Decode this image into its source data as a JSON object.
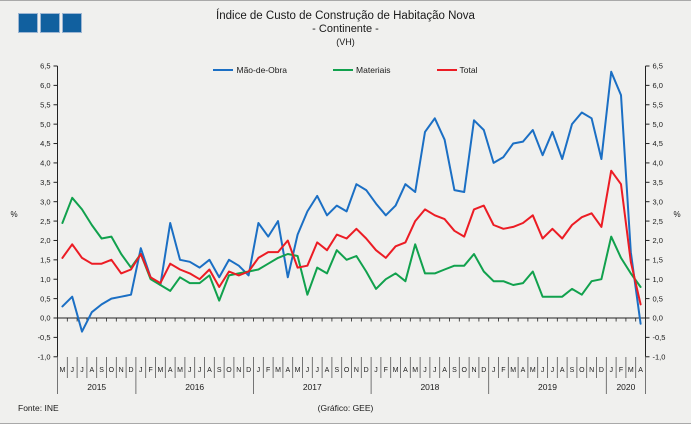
{
  "header": {
    "title_line1": "Índice de Custo de Construção de Habitação Nova",
    "title_line2": "- Continente -",
    "title_line3": "(VH)"
  },
  "legend": [
    {
      "label": "Mão-de-Obra",
      "color": "#1B6FC4"
    },
    {
      "label": "Materiais",
      "color": "#11A14D"
    },
    {
      "label": "Total",
      "color": "#EC1C24"
    }
  ],
  "footer": {
    "source": "Fonte: INE",
    "credit": "(Gráfico: GEE)"
  },
  "decoration": {
    "squares_color": "#11609F",
    "squares_count": 3
  },
  "chart_data": {
    "type": "line",
    "title": "Índice de Custo de Construção de Habitação Nova - Continente - (VH)",
    "ylabel_left": "%",
    "ylabel_right": "%",
    "ylim": [
      -1.0,
      6.5
    ],
    "ytick_step": 0.5,
    "grid": false,
    "legend_position": "top",
    "months": [
      "M",
      "J",
      "J",
      "A",
      "S",
      "O",
      "N",
      "D",
      "J",
      "F",
      "M",
      "A",
      "M",
      "J",
      "J",
      "A",
      "S",
      "O",
      "N",
      "D",
      "J",
      "F",
      "M",
      "A",
      "M",
      "J",
      "J",
      "A",
      "S",
      "O",
      "N",
      "D",
      "J",
      "F",
      "M",
      "A",
      "M",
      "J",
      "J",
      "A",
      "S",
      "O",
      "N",
      "D",
      "J",
      "F",
      "M",
      "A",
      "M",
      "J",
      "J",
      "A",
      "S",
      "O",
      "N",
      "D",
      "J",
      "F",
      "M",
      "A"
    ],
    "years": [
      {
        "label": "2015",
        "span": 8
      },
      {
        "label": "2016",
        "span": 12
      },
      {
        "label": "2017",
        "span": 12
      },
      {
        "label": "2018",
        "span": 12
      },
      {
        "label": "2019",
        "span": 12
      },
      {
        "label": "2020",
        "span": 4
      }
    ],
    "series": [
      {
        "name": "Mão-de-Obra",
        "color": "#1B6FC4",
        "values": [
          0.3,
          0.55,
          -0.35,
          0.15,
          0.35,
          0.5,
          0.55,
          0.6,
          1.8,
          1.05,
          0.85,
          2.45,
          1.5,
          1.45,
          1.3,
          1.5,
          1.05,
          1.5,
          1.35,
          1.1,
          2.45,
          2.1,
          2.5,
          1.05,
          2.15,
          2.75,
          3.15,
          2.65,
          2.9,
          2.75,
          3.45,
          3.3,
          2.95,
          2.65,
          2.9,
          3.45,
          3.25,
          4.8,
          5.15,
          4.6,
          3.3,
          3.25,
          5.1,
          4.85,
          4.0,
          4.15,
          4.5,
          4.55,
          4.85,
          4.2,
          4.8,
          4.1,
          5.0,
          5.3,
          5.15,
          4.1,
          6.35,
          5.75,
          1.7,
          -0.15
        ]
      },
      {
        "name": "Materiais",
        "color": "#11A14D",
        "values": [
          2.45,
          3.1,
          2.8,
          2.4,
          2.05,
          2.1,
          1.65,
          1.3,
          1.65,
          1.0,
          0.85,
          0.7,
          1.05,
          0.9,
          0.9,
          1.1,
          0.45,
          1.1,
          1.15,
          1.2,
          1.25,
          1.4,
          1.55,
          1.65,
          1.6,
          0.6,
          1.3,
          1.15,
          1.75,
          1.5,
          1.6,
          1.2,
          0.75,
          1.0,
          1.15,
          0.95,
          1.9,
          1.15,
          1.15,
          1.25,
          1.35,
          1.35,
          1.65,
          1.2,
          0.95,
          0.95,
          0.85,
          0.9,
          1.2,
          0.55,
          0.55,
          0.55,
          0.75,
          0.6,
          0.95,
          1.0,
          2.1,
          1.55,
          1.15,
          0.8
        ]
      },
      {
        "name": "Total",
        "color": "#EC1C24",
        "values": [
          1.55,
          1.9,
          1.55,
          1.4,
          1.4,
          1.5,
          1.15,
          1.25,
          1.65,
          1.05,
          0.9,
          1.4,
          1.25,
          1.15,
          1.0,
          1.25,
          0.8,
          1.2,
          1.1,
          1.2,
          1.55,
          1.7,
          1.7,
          2.0,
          1.3,
          1.35,
          1.95,
          1.75,
          2.15,
          2.05,
          2.3,
          2.05,
          1.75,
          1.55,
          1.85,
          1.95,
          2.5,
          2.8,
          2.65,
          2.55,
          2.25,
          2.1,
          2.8,
          2.9,
          2.4,
          2.3,
          2.35,
          2.45,
          2.65,
          2.05,
          2.3,
          2.05,
          2.4,
          2.6,
          2.7,
          2.35,
          3.8,
          3.45,
          1.45,
          0.35
        ]
      }
    ]
  }
}
